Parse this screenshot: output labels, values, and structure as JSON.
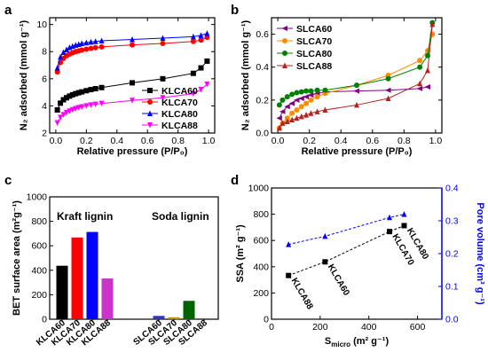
{
  "chart_data": [
    {
      "panel": "a",
      "type": "line",
      "xlabel": "Relative pressure (P/P₀)",
      "ylabel": "N₂ adsorbed (mmol g⁻¹)",
      "xlim": [
        -0.04,
        1.04
      ],
      "ylim": [
        2,
        10.5
      ],
      "xticks": [
        "0.0",
        "0.2",
        "0.4",
        "0.6",
        "0.8",
        "1.0"
      ],
      "yticks": [
        "2",
        "4",
        "6",
        "8",
        "10"
      ],
      "legend_position": "bottom-right",
      "series": [
        {
          "name": "KLCA60",
          "color": "#000000",
          "marker": "square",
          "x": [
            0.01,
            0.03,
            0.05,
            0.07,
            0.09,
            0.11,
            0.13,
            0.15,
            0.17,
            0.2,
            0.23,
            0.26,
            0.3,
            0.5,
            0.7,
            0.9,
            0.95,
            0.99
          ],
          "y": [
            3.7,
            4.2,
            4.45,
            4.6,
            4.72,
            4.82,
            4.9,
            4.97,
            5.03,
            5.12,
            5.2,
            5.27,
            5.35,
            5.7,
            6.0,
            6.4,
            6.8,
            7.3
          ]
        },
        {
          "name": "KLCA70",
          "color": "#ff0000",
          "marker": "circle",
          "x": [
            0.01,
            0.03,
            0.05,
            0.07,
            0.09,
            0.11,
            0.13,
            0.15,
            0.17,
            0.2,
            0.23,
            0.26,
            0.3,
            0.5,
            0.7,
            0.9,
            0.95,
            0.99
          ],
          "y": [
            6.5,
            7.2,
            7.5,
            7.7,
            7.82,
            7.92,
            8.0,
            8.06,
            8.11,
            8.18,
            8.24,
            8.29,
            8.35,
            8.5,
            8.6,
            8.75,
            8.85,
            9.05
          ]
        },
        {
          "name": "KLCA80",
          "color": "#0000ff",
          "marker": "triangle",
          "x": [
            0.01,
            0.03,
            0.05,
            0.07,
            0.09,
            0.11,
            0.13,
            0.15,
            0.17,
            0.2,
            0.23,
            0.26,
            0.3,
            0.5,
            0.7,
            0.9,
            0.95,
            0.99
          ],
          "y": [
            6.8,
            7.6,
            7.95,
            8.15,
            8.3,
            8.4,
            8.48,
            8.54,
            8.6,
            8.66,
            8.71,
            8.75,
            8.8,
            8.9,
            9.0,
            9.1,
            9.2,
            9.35
          ]
        },
        {
          "name": "KLCA88",
          "color": "#ff00ff",
          "marker": "triangle-down",
          "x": [
            0.01,
            0.03,
            0.05,
            0.07,
            0.09,
            0.11,
            0.13,
            0.15,
            0.17,
            0.2,
            0.23,
            0.26,
            0.3,
            0.5,
            0.7,
            0.9,
            0.95,
            0.99
          ],
          "y": [
            2.75,
            3.15,
            3.35,
            3.5,
            3.62,
            3.72,
            3.8,
            3.87,
            3.93,
            4.0,
            4.07,
            4.12,
            4.18,
            4.4,
            4.6,
            4.9,
            5.2,
            5.6
          ]
        }
      ]
    },
    {
      "panel": "b",
      "type": "line",
      "xlabel": "Relative pressure (P/P₀)",
      "ylabel": "N₂ adsorbed (mmol g⁻¹)",
      "xlim": [
        -0.04,
        1.04
      ],
      "ylim": [
        0,
        0.7
      ],
      "xticks": [
        "0.0",
        "0.2",
        "0.4",
        "0.6",
        "0.8",
        "1.0"
      ],
      "yticks": [
        "0.0",
        "0.2",
        "0.4",
        "0.6"
      ],
      "legend_position": "top-left",
      "series": [
        {
          "name": "SLCA60",
          "color": "#800080",
          "marker": "triangle-left",
          "x": [
            0.01,
            0.03,
            0.06,
            0.09,
            0.12,
            0.15,
            0.18,
            0.21,
            0.25,
            0.3,
            0.5,
            0.7,
            0.9,
            0.95
          ],
          "y": [
            0.09,
            0.13,
            0.16,
            0.18,
            0.2,
            0.21,
            0.22,
            0.23,
            0.24,
            0.25,
            0.255,
            0.26,
            0.27,
            0.28
          ]
        },
        {
          "name": "SLCA70",
          "color": "#ff8c00",
          "marker": "circle",
          "x": [
            0.01,
            0.03,
            0.06,
            0.09,
            0.12,
            0.15,
            0.18,
            0.21,
            0.25,
            0.3,
            0.5,
            0.7,
            0.9,
            0.95,
            0.98
          ],
          "y": [
            0.03,
            0.06,
            0.09,
            0.12,
            0.14,
            0.16,
            0.18,
            0.2,
            0.22,
            0.24,
            0.29,
            0.35,
            0.44,
            0.5,
            0.6
          ]
        },
        {
          "name": "SLCA80",
          "color": "#008000",
          "marker": "circle",
          "x": [
            0.01,
            0.03,
            0.06,
            0.09,
            0.12,
            0.15,
            0.18,
            0.21,
            0.25,
            0.3,
            0.5,
            0.7,
            0.9,
            0.95,
            0.98
          ],
          "y": [
            0.17,
            0.2,
            0.22,
            0.235,
            0.245,
            0.25,
            0.255,
            0.255,
            0.26,
            0.26,
            0.29,
            0.33,
            0.4,
            0.47,
            0.67
          ]
        },
        {
          "name": "SLCA88",
          "color": "#b22222",
          "marker": "triangle",
          "x": [
            0.01,
            0.03,
            0.06,
            0.09,
            0.12,
            0.15,
            0.18,
            0.21,
            0.25,
            0.3,
            0.5,
            0.7,
            0.9,
            0.95,
            0.98
          ],
          "y": [
            0.03,
            0.06,
            0.07,
            0.08,
            0.09,
            0.1,
            0.11,
            0.12,
            0.13,
            0.14,
            0.17,
            0.21,
            0.3,
            0.38,
            0.66
          ]
        }
      ]
    },
    {
      "panel": "c",
      "type": "bar",
      "ylabel": "BET surface area (m²g⁻¹)",
      "ylim": [
        0,
        1000
      ],
      "yticks": [
        "0",
        "200",
        "400",
        "600",
        "800",
        "1000"
      ],
      "group_labels": [
        "Kraft lignin",
        "Soda lignin"
      ],
      "categories": [
        "KLCA60",
        "KLCA70",
        "KLCA80",
        "KLCA88",
        "SLCA60",
        "SLCA70",
        "SLCA80",
        "SLCA88"
      ],
      "values": [
        437,
        668,
        713,
        333,
        27,
        16,
        150,
        5
      ],
      "colors": [
        "#000000",
        "#ff0000",
        "#0000ff",
        "#cc33cc",
        "#3333cc",
        "#cc8800",
        "#006400",
        "#8b0000"
      ]
    },
    {
      "panel": "d",
      "type": "scatter",
      "xlabel": "S",
      "xlabel_sub": "micro",
      "xlabel_unit": " (m² g⁻¹)",
      "ylabel": "SSA (m² g⁻¹)",
      "y2label": "Pore volume (cm³ g⁻¹)",
      "xlim": [
        0,
        700
      ],
      "ylim": [
        0,
        1000
      ],
      "y2lim": [
        0,
        0.4
      ],
      "xticks": [
        "0",
        "200",
        "400",
        "600"
      ],
      "yticks": [
        "0",
        "200",
        "400",
        "600",
        "800",
        "1000"
      ],
      "y2ticks": [
        "0.0",
        "0.1",
        "0.2",
        "0.3",
        "0.4"
      ],
      "series": [
        {
          "axis": "left",
          "color": "#000000",
          "marker": "square",
          "x": [
            70,
            220,
            485,
            545
          ],
          "y": [
            333,
            437,
            668,
            713
          ],
          "labels": [
            "KLCA88",
            "KLCA60",
            "KLCA70",
            "KLCA80"
          ]
        },
        {
          "axis": "right",
          "color": "#0000ff",
          "marker": "triangle",
          "x": [
            70,
            220,
            485,
            545
          ],
          "y": [
            0.228,
            0.253,
            0.31,
            0.32
          ]
        }
      ]
    }
  ]
}
